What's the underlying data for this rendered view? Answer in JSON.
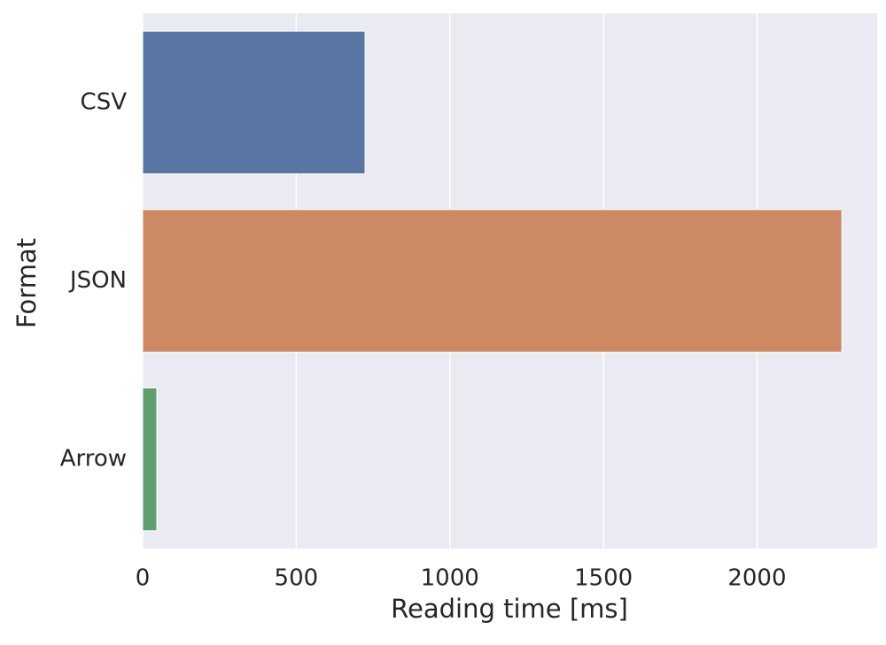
{
  "chart_data": {
    "type": "bar",
    "orientation": "horizontal",
    "categories": [
      "CSV",
      "JSON",
      "Arrow"
    ],
    "values": [
      724,
      2276,
      46
    ],
    "colors": [
      "#5975a4",
      "#cc8963",
      "#5f9e6e"
    ],
    "xlabel": "Reading time [ms]",
    "ylabel": "Format",
    "xlim": [
      0,
      2391
    ],
    "xticks": [
      0,
      500,
      1000,
      1500,
      2000
    ],
    "grid": true
  }
}
